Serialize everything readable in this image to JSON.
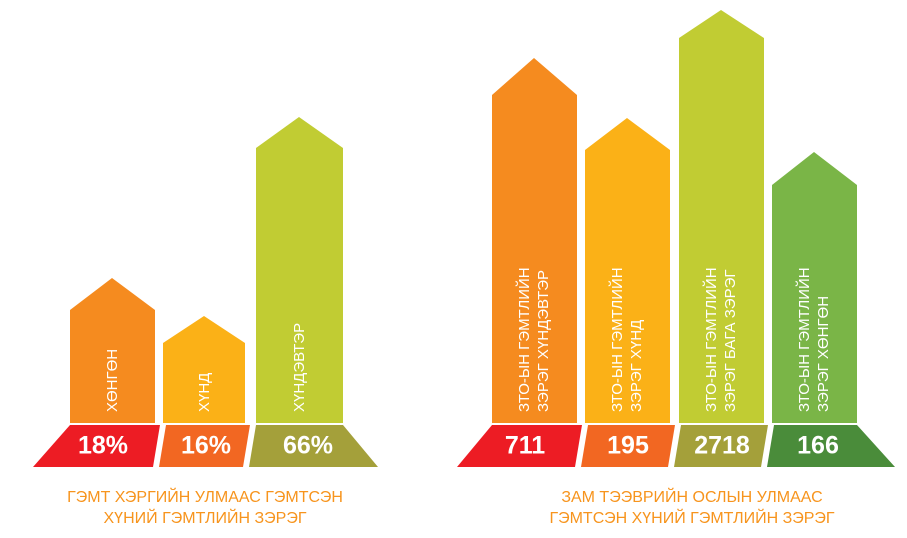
{
  "left": {
    "items": [
      {
        "label": "ХӨНГӨН",
        "value": "18%"
      },
      {
        "label": "ХҮНД",
        "value": "16%"
      },
      {
        "label": "ХҮНДЭВТЭР",
        "value": "66%"
      }
    ],
    "caption": [
      "ГЭМТ ХЭРГИЙН УЛМААС ГЭМТСЭН",
      "ХҮНИЙ ГЭМТЛИЙН ЗЭРЭГ"
    ]
  },
  "right": {
    "items": [
      {
        "label": [
          "ЗТО-ЫН ГЭМТЛИЙН",
          "ЗЭРЭГ ХҮНДЭВТЭР"
        ],
        "value": "711"
      },
      {
        "label": [
          "ЗТО-ЫН ГЭМТЛИЙН",
          "ЗЭРЭГ ХҮНД"
        ],
        "value": "195"
      },
      {
        "label": [
          "ЗТО-ЫН ГЭМТЛИЙН",
          "ЗЭРЭГ БАГА ЗЭРЭГ"
        ],
        "value": "2718"
      },
      {
        "label": [
          "ЗТО-ЫН ГЭМТЛИЙН",
          "ЗЭРЭГ ХӨНГӨН"
        ],
        "value": "166"
      }
    ],
    "caption": [
      "ЗАМ ТЭЭВРИЙН ОСЛЫН УЛМААС",
      "ГЭМТСЭН ХҮНИЙ ГЭМТЛИЙН ЗЭРЭГ"
    ]
  }
}
